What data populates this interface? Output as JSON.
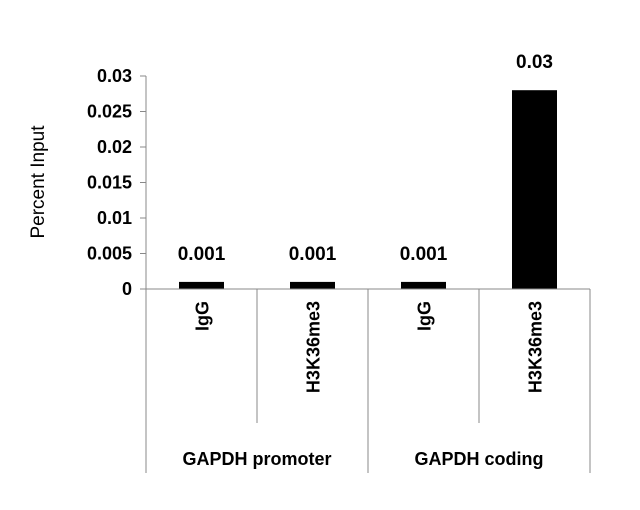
{
  "chart_data": {
    "type": "bar",
    "title": "",
    "ylabel": "Percent Input",
    "xlabel": "",
    "ylim": [
      0,
      0.03
    ],
    "yticks": [
      "0",
      "0.005",
      "0.01",
      "0.015",
      "0.02",
      "0.025",
      "0.03"
    ],
    "yticks_values": [
      0,
      0.005,
      0.01,
      0.015,
      0.02,
      0.025,
      0.03
    ],
    "categories": [
      "IgG",
      "H3K36me3",
      "IgG",
      "H3K36me3"
    ],
    "values": [
      0.001,
      0.001,
      0.001,
      0.028
    ],
    "data_labels": [
      "0.001",
      "0.001",
      "0.001",
      "0.03"
    ],
    "groups": [
      {
        "label": "GAPDH promoter",
        "categories": [
          0,
          1
        ]
      },
      {
        "label": "GAPDH coding",
        "categories": [
          2,
          3
        ]
      }
    ],
    "grid": false,
    "legend": "none",
    "bar_color": "#000000"
  }
}
